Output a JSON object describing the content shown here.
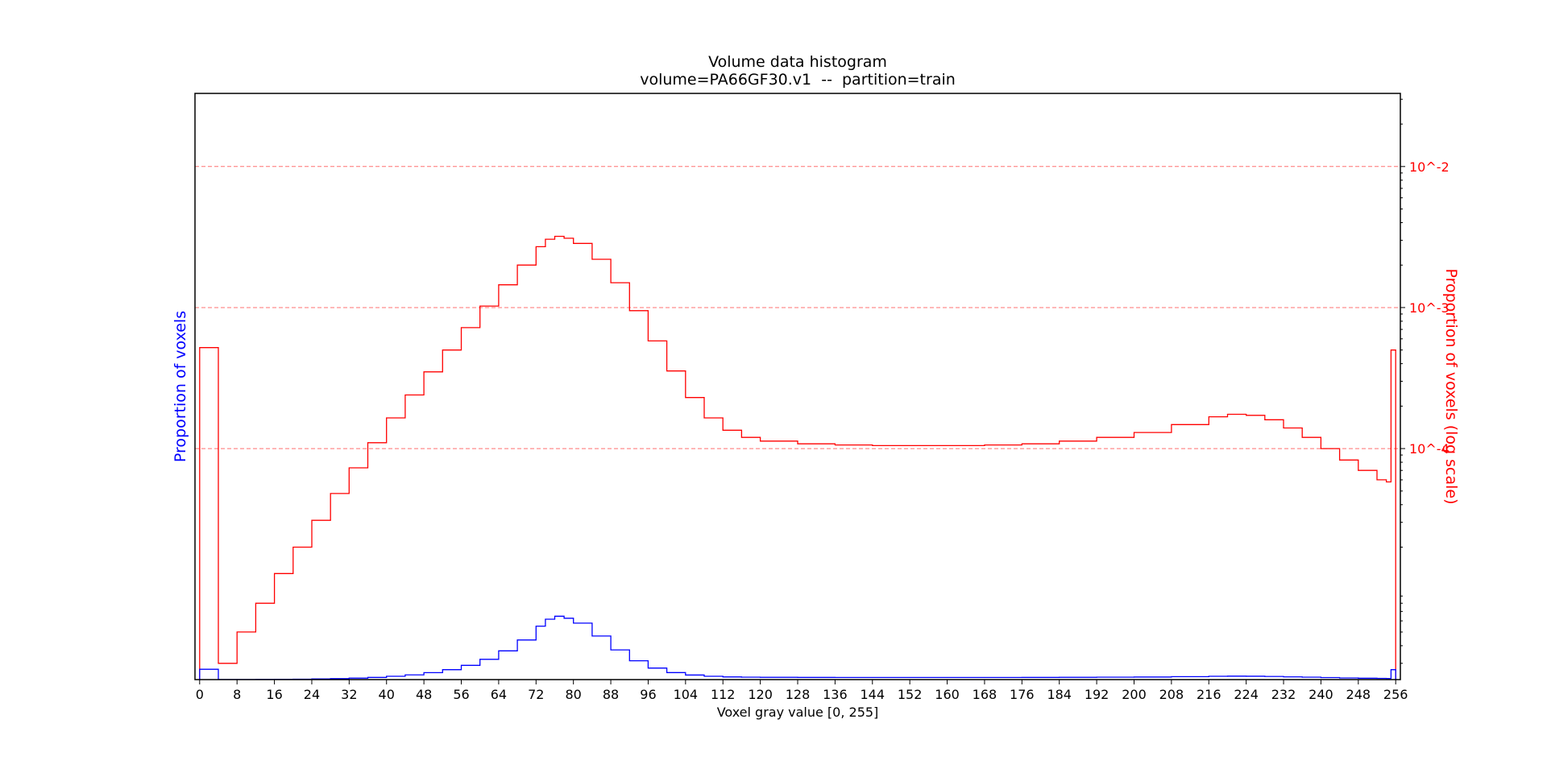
{
  "chart_data": {
    "type": "line",
    "title": "Volume data histogram",
    "subtitle": "volume=PA66GF30.v1  --  partition=train",
    "xlabel": "Voxel gray value [0, 255]",
    "ylabel_left": "Proportion of voxels",
    "ylabel_right": "Proportion of voxels (log scale)",
    "xlim": [
      -1,
      257
    ],
    "x_ticks": [
      0,
      8,
      16,
      24,
      32,
      40,
      48,
      56,
      64,
      72,
      80,
      88,
      96,
      104,
      112,
      120,
      128,
      136,
      144,
      152,
      160,
      168,
      176,
      184,
      192,
      200,
      208,
      216,
      224,
      232,
      240,
      248,
      256
    ],
    "ylim_left": [
      0,
      0.0296
    ],
    "left_axis_tick_labels_shown": false,
    "ylim_right_log": [
      2.3e-06,
      0.033
    ],
    "right_ticks": [
      {
        "value": 0.01,
        "label": "10^-2"
      },
      {
        "value": 0.001,
        "label": "10^-3"
      },
      {
        "value": 0.0001,
        "label": "10^-4"
      }
    ],
    "grid": "dashed horizontal lines at right-axis decades",
    "drawstyle": "steps",
    "colors": {
      "linear": "#0000ff",
      "log": "#ff0000",
      "grid": "#ff7070"
    },
    "x": [
      0,
      4,
      8,
      12,
      16,
      20,
      24,
      28,
      32,
      36,
      40,
      44,
      48,
      52,
      56,
      60,
      64,
      68,
      72,
      74,
      76,
      78,
      80,
      84,
      88,
      92,
      96,
      100,
      104,
      108,
      112,
      116,
      120,
      128,
      136,
      144,
      152,
      160,
      168,
      176,
      184,
      192,
      200,
      208,
      216,
      220,
      224,
      228,
      232,
      236,
      240,
      244,
      248,
      252,
      254,
      255
    ],
    "series": [
      {
        "values": [
          0.00052,
          3e-06,
          5e-06,
          8e-06,
          1.3e-05,
          2e-05,
          3.1e-05,
          4.8e-05,
          7.3e-05,
          0.00011,
          0.000165,
          0.00024,
          0.00035,
          0.0005,
          0.00072,
          0.001025,
          0.00145,
          0.002,
          0.0027,
          0.00305,
          0.0032,
          0.0031,
          0.00285,
          0.0022,
          0.0015,
          0.00095,
          0.00058,
          0.000355,
          0.00023,
          0.000165,
          0.000135,
          0.00012,
          0.000113,
          0.000108,
          0.000106,
          0.000105,
          0.000105,
          0.000105,
          0.000106,
          0.000108,
          0.000113,
          0.00012,
          0.00013,
          0.000148,
          0.000168,
          0.000175,
          0.000172,
          0.00016,
          0.00014,
          0.00012,
          0.0001,
          8.3e-05,
          7e-05,
          6e-05,
          5.8e-05,
          0.0005
        ]
      },
      {
        "values": [
          0.00052,
          3e-06,
          5e-06,
          8e-06,
          1.3e-05,
          2e-05,
          3.1e-05,
          4.8e-05,
          7.3e-05,
          0.00011,
          0.000165,
          0.00024,
          0.00035,
          0.0005,
          0.00072,
          0.001025,
          0.00145,
          0.002,
          0.0027,
          0.00305,
          0.0032,
          0.0031,
          0.00285,
          0.0022,
          0.0015,
          0.00095,
          0.00058,
          0.000355,
          0.00023,
          0.000165,
          0.000135,
          0.00012,
          0.000113,
          0.000108,
          0.000106,
          0.000105,
          0.000105,
          0.000105,
          0.000106,
          0.000108,
          0.000113,
          0.00012,
          0.00013,
          0.000148,
          0.000168,
          0.000175,
          0.000172,
          0.00016,
          0.00014,
          0.00012,
          0.0001,
          8.3e-05,
          7e-05,
          6e-05,
          5.8e-05,
          0.0005
        ]
      }
    ]
  }
}
